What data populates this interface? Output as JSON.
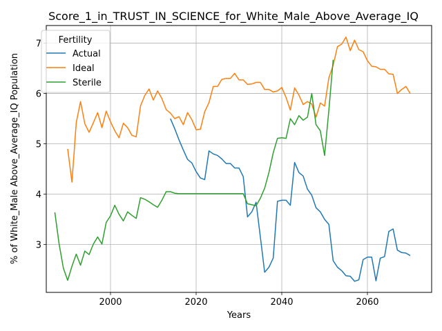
{
  "chart_data": {
    "type": "line",
    "title": "Score_1_in_TRUST_IN_SCIENCE_for_White_Male_Above_Average_IQ",
    "xlabel": "Years",
    "ylabel": "% of White_Male Above_Average_IQ Population",
    "xlim": [
      1985,
      2075
    ],
    "ylim": [
      2.05,
      7.35
    ],
    "x_ticks": [
      2000,
      2020,
      2040,
      2060
    ],
    "x_tick_labels": [
      "2000",
      "2020",
      "2040",
      "2060"
    ],
    "y_ticks": [
      3,
      4,
      5,
      6,
      7
    ],
    "y_tick_labels": [
      "3",
      "4",
      "5",
      "6",
      "7"
    ],
    "grid": true,
    "legend": {
      "title": "Fertility",
      "placement": "top-left"
    },
    "series": [
      {
        "name": "Actual",
        "color": "#1f77b4",
        "x": [
          2014,
          2015,
          2016,
          2017,
          2018,
          2019,
          2020,
          2021,
          2022,
          2023,
          2024,
          2025,
          2026,
          2027,
          2028,
          2029,
          2030,
          2031,
          2032,
          2033,
          2034,
          2035,
          2036,
          2037,
          2038,
          2039,
          2040,
          2041,
          2042,
          2043,
          2044,
          2045,
          2046,
          2047,
          2048,
          2049,
          2050,
          2051,
          2052,
          2053,
          2054,
          2055,
          2056,
          2057,
          2058,
          2059,
          2060,
          2061,
          2062,
          2063,
          2064,
          2065,
          2066,
          2067,
          2068,
          2069,
          2070
        ],
        "y": [
          5.5,
          5.3,
          5.08,
          4.88,
          4.69,
          4.62,
          4.45,
          4.32,
          4.29,
          4.86,
          4.8,
          4.77,
          4.7,
          4.61,
          4.61,
          4.52,
          4.52,
          4.35,
          3.55,
          3.65,
          3.84,
          3.15,
          2.45,
          2.55,
          2.73,
          3.86,
          3.88,
          3.88,
          3.78,
          4.63,
          4.43,
          4.36,
          4.1,
          3.98,
          3.73,
          3.65,
          3.5,
          3.4,
          2.68,
          2.55,
          2.48,
          2.38,
          2.37,
          2.27,
          2.3,
          2.7,
          2.75,
          2.75,
          2.28,
          2.73,
          2.76,
          3.26,
          3.31,
          2.89,
          2.84,
          2.83,
          2.78
        ]
      },
      {
        "name": "Ideal",
        "color": "#ff7f0e",
        "x": [
          1990,
          1991,
          1992,
          1993,
          1994,
          1995,
          1996,
          1997,
          1998,
          1999,
          2000,
          2001,
          2002,
          2003,
          2004,
          2005,
          2006,
          2007,
          2008,
          2009,
          2010,
          2011,
          2012,
          2013,
          2014,
          2015,
          2016,
          2017,
          2018,
          2019,
          2020,
          2021,
          2022,
          2023,
          2024,
          2025,
          2026,
          2027,
          2028,
          2029,
          2030,
          2031,
          2032,
          2033,
          2034,
          2035,
          2036,
          2037,
          2038,
          2039,
          2040,
          2041,
          2042,
          2043,
          2044,
          2045,
          2046,
          2047,
          2048,
          2049,
          2050,
          2051,
          2052,
          2053,
          2054,
          2055,
          2056,
          2057,
          2058,
          2059,
          2060,
          2061,
          2062,
          2063,
          2064,
          2065,
          2066,
          2067,
          2068,
          2069,
          2070
        ],
        "y": [
          4.9,
          4.24,
          5.42,
          5.84,
          5.4,
          5.23,
          5.42,
          5.62,
          5.32,
          5.65,
          5.44,
          5.26,
          5.12,
          5.41,
          5.32,
          5.17,
          5.14,
          5.75,
          5.96,
          6.09,
          5.87,
          6.05,
          5.9,
          5.68,
          5.61,
          5.5,
          5.54,
          5.38,
          5.62,
          5.48,
          5.28,
          5.29,
          5.64,
          5.82,
          6.14,
          6.14,
          6.28,
          6.3,
          6.3,
          6.4,
          6.27,
          6.27,
          6.18,
          6.19,
          6.22,
          6.22,
          6.08,
          6.08,
          6.03,
          6.05,
          6.12,
          5.92,
          5.67,
          6.11,
          5.97,
          5.78,
          5.84,
          5.79,
          5.53,
          5.81,
          5.75,
          6.31,
          6.56,
          6.93,
          6.98,
          7.12,
          6.85,
          7.06,
          6.87,
          6.83,
          6.65,
          6.54,
          6.53,
          6.48,
          6.48,
          6.39,
          6.38,
          6.0,
          6.08,
          6.14,
          6.0
        ]
      },
      {
        "name": "Sterile",
        "color": "#2ca02c",
        "x": [
          1987,
          1988,
          1989,
          1990,
          1991,
          1992,
          1993,
          1994,
          1995,
          1996,
          1997,
          1998,
          1999,
          2000,
          2001,
          2002,
          2003,
          2004,
          2005,
          2006,
          2007,
          2008,
          2009,
          2010,
          2011,
          2012,
          2013,
          2014,
          2015,
          2016,
          2017,
          2018,
          2019,
          2020,
          2021,
          2022,
          2023,
          2024,
          2025,
          2026,
          2027,
          2028,
          2029,
          2030,
          2031,
          2032,
          2033,
          2034,
          2035,
          2036,
          2037,
          2038,
          2039,
          2040,
          2041,
          2042,
          2043,
          2044,
          2045,
          2046,
          2047,
          2048,
          2049,
          2050,
          2051,
          2052
        ],
        "y": [
          3.64,
          3.01,
          2.53,
          2.29,
          2.57,
          2.81,
          2.59,
          2.87,
          2.8,
          3.01,
          3.15,
          3.01,
          3.44,
          3.57,
          3.78,
          3.6,
          3.47,
          3.65,
          3.58,
          3.52,
          3.93,
          3.9,
          3.85,
          3.79,
          3.74,
          3.88,
          4.05,
          4.05,
          4.02,
          4.01,
          4.01,
          4.01,
          4.01,
          4.01,
          4.01,
          4.01,
          4.01,
          4.01,
          4.01,
          4.01,
          4.01,
          4.01,
          4.01,
          4.01,
          4.01,
          3.81,
          3.79,
          3.77,
          3.92,
          4.12,
          4.43,
          4.82,
          5.11,
          5.12,
          5.11,
          5.5,
          5.38,
          5.56,
          5.47,
          5.53,
          6.0,
          5.38,
          5.26,
          4.77,
          5.67,
          6.67
        ]
      }
    ]
  }
}
